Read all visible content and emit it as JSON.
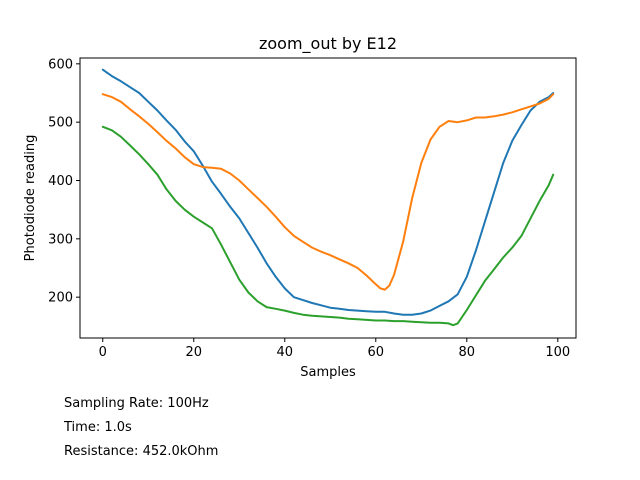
{
  "chart_data": {
    "type": "line",
    "title": "zoom_out by E12",
    "xlabel": "Samples",
    "ylabel": "Photodiode reading",
    "xlim": [
      -5,
      104
    ],
    "ylim": [
      130,
      610
    ],
    "xticks": [
      0,
      20,
      40,
      60,
      80,
      100
    ],
    "yticks": [
      200,
      300,
      400,
      500,
      600
    ],
    "grid": false,
    "legend": "none",
    "series": [
      {
        "color": "#1f77b4",
        "x": [
          0,
          2,
          4,
          6,
          8,
          10,
          12,
          14,
          16,
          18,
          20,
          22,
          24,
          26,
          28,
          30,
          32,
          34,
          36,
          38,
          40,
          42,
          44,
          46,
          48,
          50,
          52,
          54,
          56,
          58,
          60,
          62,
          64,
          66,
          68,
          70,
          72,
          74,
          76,
          78,
          80,
          82,
          84,
          86,
          88,
          90,
          92,
          94,
          96,
          98,
          99
        ],
        "y": [
          590,
          579,
          570,
          560,
          550,
          535,
          520,
          503,
          487,
          467,
          450,
          425,
          398,
          377,
          355,
          335,
          310,
          285,
          258,
          235,
          215,
          200,
          195,
          190,
          186,
          182,
          180,
          178,
          177,
          176,
          175,
          175,
          172,
          170,
          170,
          172,
          177,
          185,
          193,
          205,
          235,
          280,
          330,
          380,
          430,
          468,
          495,
          520,
          535,
          543,
          550
        ]
      },
      {
        "color": "#ff7f0e",
        "x": [
          0,
          2,
          4,
          6,
          8,
          10,
          12,
          14,
          16,
          18,
          20,
          22,
          24,
          26,
          28,
          30,
          32,
          34,
          36,
          38,
          40,
          42,
          44,
          46,
          48,
          50,
          52,
          54,
          56,
          58,
          60,
          61,
          62,
          63,
          64,
          66,
          68,
          70,
          72,
          74,
          76,
          78,
          80,
          82,
          84,
          86,
          88,
          90,
          92,
          94,
          96,
          98,
          99
        ],
        "y": [
          548,
          543,
          535,
          522,
          510,
          497,
          483,
          468,
          455,
          440,
          428,
          423,
          422,
          420,
          412,
          400,
          385,
          370,
          355,
          338,
          320,
          305,
          295,
          285,
          278,
          272,
          265,
          258,
          250,
          237,
          222,
          215,
          213,
          220,
          238,
          295,
          370,
          430,
          470,
          492,
          502,
          500,
          503,
          508,
          508,
          510,
          513,
          517,
          522,
          527,
          532,
          540,
          548
        ]
      },
      {
        "color": "#2ca02c",
        "x": [
          0,
          2,
          4,
          6,
          8,
          10,
          12,
          14,
          16,
          18,
          20,
          22,
          24,
          26,
          28,
          30,
          32,
          34,
          36,
          38,
          40,
          42,
          44,
          46,
          48,
          50,
          52,
          54,
          56,
          58,
          60,
          62,
          64,
          66,
          68,
          70,
          72,
          74,
          76,
          77,
          78,
          80,
          82,
          84,
          86,
          88,
          90,
          92,
          94,
          96,
          98,
          99
        ],
        "y": [
          492,
          486,
          475,
          460,
          445,
          428,
          410,
          385,
          365,
          350,
          338,
          328,
          318,
          290,
          260,
          230,
          208,
          193,
          183,
          180,
          177,
          173,
          170,
          168,
          167,
          166,
          165,
          163,
          162,
          161,
          160,
          160,
          159,
          159,
          158,
          157,
          156,
          156,
          155,
          152,
          155,
          178,
          203,
          228,
          248,
          268,
          285,
          305,
          335,
          365,
          392,
          410
        ]
      }
    ],
    "annotations": [
      "Sampling Rate: 100Hz",
      "Time: 1.0s",
      "Resistance: 452.0kOhm"
    ]
  }
}
